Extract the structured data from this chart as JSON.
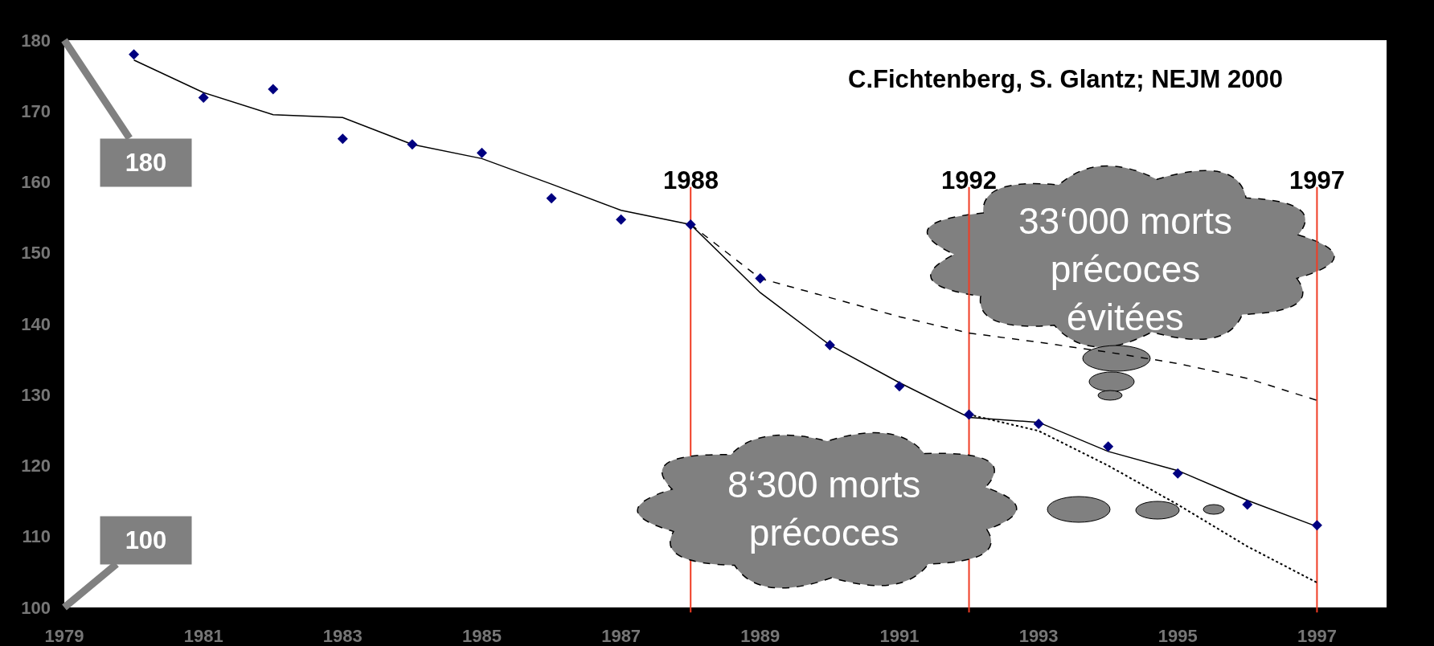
{
  "chart_data": {
    "type": "line",
    "xlim": [
      1979,
      1998
    ],
    "ylim": [
      100,
      180
    ],
    "xticks": [
      1979,
      1981,
      1983,
      1985,
      1987,
      1989,
      1991,
      1993,
      1995,
      1997
    ],
    "yticks": [
      100,
      110,
      120,
      130,
      140,
      150,
      160,
      170,
      180
    ],
    "series": [
      {
        "line_style": "solid",
        "color": "#000000",
        "x": [
          1980,
          1981,
          1982,
          1983,
          1984,
          1985,
          1986,
          1987,
          1988,
          1989,
          1990,
          1991,
          1992,
          1993,
          1994,
          1995,
          1996,
          1997
        ],
        "values": [
          177.2,
          172.6,
          169.5,
          169.1,
          165.3,
          163.3,
          159.7,
          156.0,
          154.0,
          144.4,
          137.0,
          131.7,
          126.8,
          126.1,
          122.0,
          119.3,
          115.1,
          111.4
        ]
      },
      {
        "line_style": "dashed",
        "color": "#000000",
        "x": [
          1988,
          1989,
          1990,
          1991,
          1992,
          1993,
          1994,
          1995,
          1996,
          1997
        ],
        "values": [
          154.0,
          146.4,
          143.7,
          141.0,
          138.7,
          137.4,
          136.0,
          134.4,
          132.3,
          129.2
        ]
      },
      {
        "line_style": "dotted",
        "color": "#000000",
        "x": [
          1992,
          1993,
          1994,
          1995,
          1996,
          1997
        ],
        "values": [
          127.2,
          124.9,
          120.0,
          114.5,
          108.6,
          103.5
        ]
      },
      {
        "type": "scatter",
        "marker": "diamond",
        "color": "#000080",
        "x": [
          1980,
          1981,
          1982,
          1983,
          1984,
          1985,
          1986,
          1987,
          1988,
          1989,
          1990,
          1991,
          1992,
          1993,
          1994,
          1995,
          1996,
          1997
        ],
        "values": [
          178.0,
          171.9,
          173.1,
          166.1,
          165.3,
          164.1,
          157.7,
          154.7,
          154.0,
          146.4,
          137.0,
          131.2,
          127.2,
          125.9,
          122.7,
          118.9,
          114.5,
          111.6
        ]
      }
    ],
    "ref_lines": [
      {
        "axis": "x",
        "value": 1988,
        "label": "1988",
        "color": "#f03c24"
      },
      {
        "axis": "x",
        "value": 1992,
        "label": "1992",
        "color": "#f03c24"
      },
      {
        "axis": "x",
        "value": 1997,
        "label": "1997",
        "color": "#f03c24"
      }
    ],
    "annotations": [
      "C.Fichtenberg, S. Glantz; NEJM 2000",
      "33‘000 morts\nprécoces\névitées",
      "8‘300 morts\nprécoces",
      "180",
      "100"
    ]
  }
}
